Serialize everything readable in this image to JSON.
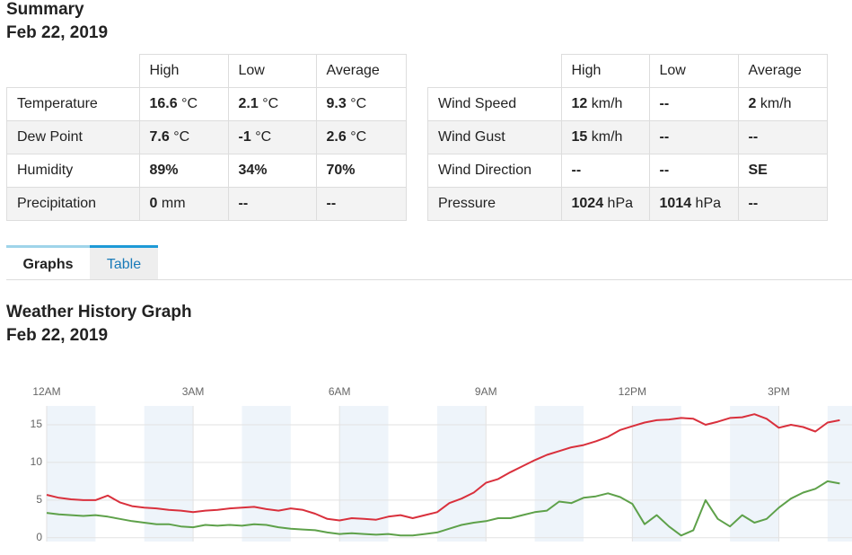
{
  "summary": {
    "title": "Summary",
    "date": "Feb 22, 2019"
  },
  "tables": [
    {
      "header": [
        "High",
        "Low",
        "Average"
      ],
      "rows": [
        {
          "label": "Temperature",
          "cells": [
            {
              "value": "16.6",
              "unit": "°C"
            },
            {
              "value": "2.1",
              "unit": "°C"
            },
            {
              "value": "9.3",
              "unit": "°C"
            }
          ]
        },
        {
          "label": "Dew Point",
          "cells": [
            {
              "value": "7.6",
              "unit": "°C"
            },
            {
              "value": "-1",
              "unit": "°C"
            },
            {
              "value": "2.6",
              "unit": "°C"
            }
          ]
        },
        {
          "label": "Humidity",
          "cells": [
            {
              "value": "89%"
            },
            {
              "value": "34%"
            },
            {
              "value": "70%"
            }
          ]
        },
        {
          "label": "Precipitation",
          "cells": [
            {
              "value": "0",
              "unit": "mm"
            },
            {
              "value": "--"
            },
            {
              "value": "--"
            }
          ]
        }
      ]
    },
    {
      "header": [
        "High",
        "Low",
        "Average"
      ],
      "rows": [
        {
          "label": "Wind Speed",
          "cells": [
            {
              "value": "12",
              "unit": "km/h"
            },
            {
              "value": "--"
            },
            {
              "value": "2",
              "unit": "km/h"
            }
          ]
        },
        {
          "label": "Wind Gust",
          "cells": [
            {
              "value": "15",
              "unit": "km/h"
            },
            {
              "value": "--"
            },
            {
              "value": "--"
            }
          ]
        },
        {
          "label": "Wind Direction",
          "cells": [
            {
              "value": "--"
            },
            {
              "value": "--"
            },
            {
              "value": "SE"
            }
          ]
        },
        {
          "label": "Pressure",
          "cells": [
            {
              "value": "1024",
              "unit": "hPa"
            },
            {
              "value": "1014",
              "unit": "hPa"
            },
            {
              "value": "--"
            }
          ]
        }
      ]
    }
  ],
  "tabs": [
    "Graphs",
    "Table"
  ],
  "graph": {
    "title": "Weather History Graph",
    "date": "Feb 22, 2019"
  },
  "chart_data": {
    "type": "line",
    "x": [
      0,
      0.25,
      0.5,
      0.75,
      1,
      1.25,
      1.5,
      1.75,
      2,
      2.25,
      2.5,
      2.75,
      3,
      3.25,
      3.5,
      3.75,
      4,
      4.25,
      4.5,
      4.75,
      5,
      5.25,
      5.5,
      5.75,
      6,
      6.25,
      6.5,
      6.75,
      7,
      7.25,
      7.5,
      7.75,
      8,
      8.25,
      8.5,
      8.75,
      9,
      9.25,
      9.5,
      9.75,
      10,
      10.25,
      10.5,
      10.75,
      11,
      11.25,
      11.5,
      11.75,
      12,
      12.25,
      12.5,
      12.75,
      13,
      13.25,
      13.5,
      13.75,
      14,
      14.25,
      14.5,
      14.75,
      15,
      15.25,
      15.5,
      15.75,
      16,
      16.25
    ],
    "series": [
      {
        "color": "#d9303c",
        "values": [
          5.7,
          5.3,
          5.1,
          5.0,
          5.0,
          5.6,
          4.7,
          4.2,
          4.0,
          3.9,
          3.7,
          3.6,
          3.4,
          3.6,
          3.7,
          3.9,
          4.0,
          4.1,
          3.8,
          3.6,
          3.9,
          3.7,
          3.2,
          2.5,
          2.3,
          2.6,
          2.5,
          2.4,
          2.8,
          3.0,
          2.6,
          3.0,
          3.4,
          4.6,
          5.2,
          6.0,
          7.3,
          7.8,
          8.7,
          9.5,
          10.3,
          11.0,
          11.5,
          12.0,
          12.3,
          12.8,
          13.4,
          14.3,
          14.8,
          15.3,
          15.6,
          15.7,
          15.9,
          15.8,
          15.0,
          15.4,
          15.9,
          16.0,
          16.4,
          15.8,
          14.6,
          15.0,
          14.7,
          14.1,
          15.3,
          15.6
        ]
      },
      {
        "color": "#5ea14a",
        "values": [
          3.3,
          3.1,
          3.0,
          2.9,
          3.0,
          2.8,
          2.5,
          2.2,
          2.0,
          1.8,
          1.8,
          1.5,
          1.4,
          1.7,
          1.6,
          1.7,
          1.6,
          1.8,
          1.7,
          1.4,
          1.2,
          1.1,
          1.0,
          0.7,
          0.5,
          0.6,
          0.5,
          0.4,
          0.5,
          0.3,
          0.3,
          0.5,
          0.7,
          1.2,
          1.7,
          2.0,
          2.2,
          2.6,
          2.6,
          3.0,
          3.4,
          3.6,
          4.8,
          4.6,
          5.3,
          5.5,
          5.9,
          5.4,
          4.5,
          1.8,
          3.0,
          1.5,
          0.3,
          1.0,
          5.0,
          2.5,
          1.5,
          3.0,
          2.0,
          2.5,
          4.0,
          5.2,
          6.0,
          6.5,
          7.5,
          7.2
        ]
      }
    ],
    "xlim": [
      0,
      16.5
    ],
    "xticks": [
      {
        "value": 0,
        "label": "12AM"
      },
      {
        "value": 3,
        "label": "3AM"
      },
      {
        "value": 6,
        "label": "6AM"
      },
      {
        "value": 9,
        "label": "9AM"
      },
      {
        "value": 12,
        "label": "12PM"
      },
      {
        "value": 15,
        "label": "3PM"
      }
    ],
    "ylim": [
      -0.5,
      17.5
    ],
    "yticks": [
      0,
      5,
      10,
      15
    ],
    "grid": true
  }
}
